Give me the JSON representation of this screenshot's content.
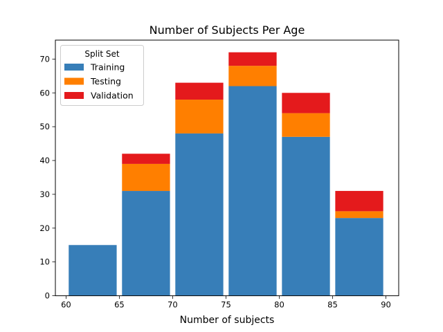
{
  "chart_data": {
    "type": "bar",
    "stacked": true,
    "title": "Number of Subjects Per Age",
    "xlabel": "Number of subjects",
    "ylabel": "",
    "xlim": [
      59,
      91.2
    ],
    "ylim": [
      0,
      75.6
    ],
    "xticks": [
      60,
      65,
      70,
      75,
      80,
      85,
      90
    ],
    "yticks": [
      0,
      10,
      20,
      30,
      40,
      50,
      60,
      70
    ],
    "bins": [
      [
        60,
        65
      ],
      [
        65,
        70
      ],
      [
        70,
        75
      ],
      [
        75,
        80
      ],
      [
        80,
        85
      ],
      [
        85,
        90
      ]
    ],
    "bar_width_fraction": 0.9,
    "grid": false,
    "legend": {
      "title": "Split Set",
      "position": "top-left"
    },
    "series": [
      {
        "name": "Training",
        "color": "#377eb8",
        "values": [
          15,
          31,
          48,
          62,
          47,
          23
        ]
      },
      {
        "name": "Testing",
        "color": "#ff7f00",
        "values": [
          0,
          8,
          10,
          6,
          7,
          2
        ]
      },
      {
        "name": "Validation",
        "color": "#e41a1c",
        "values": [
          0,
          3,
          5,
          4,
          6,
          6
        ]
      }
    ]
  }
}
